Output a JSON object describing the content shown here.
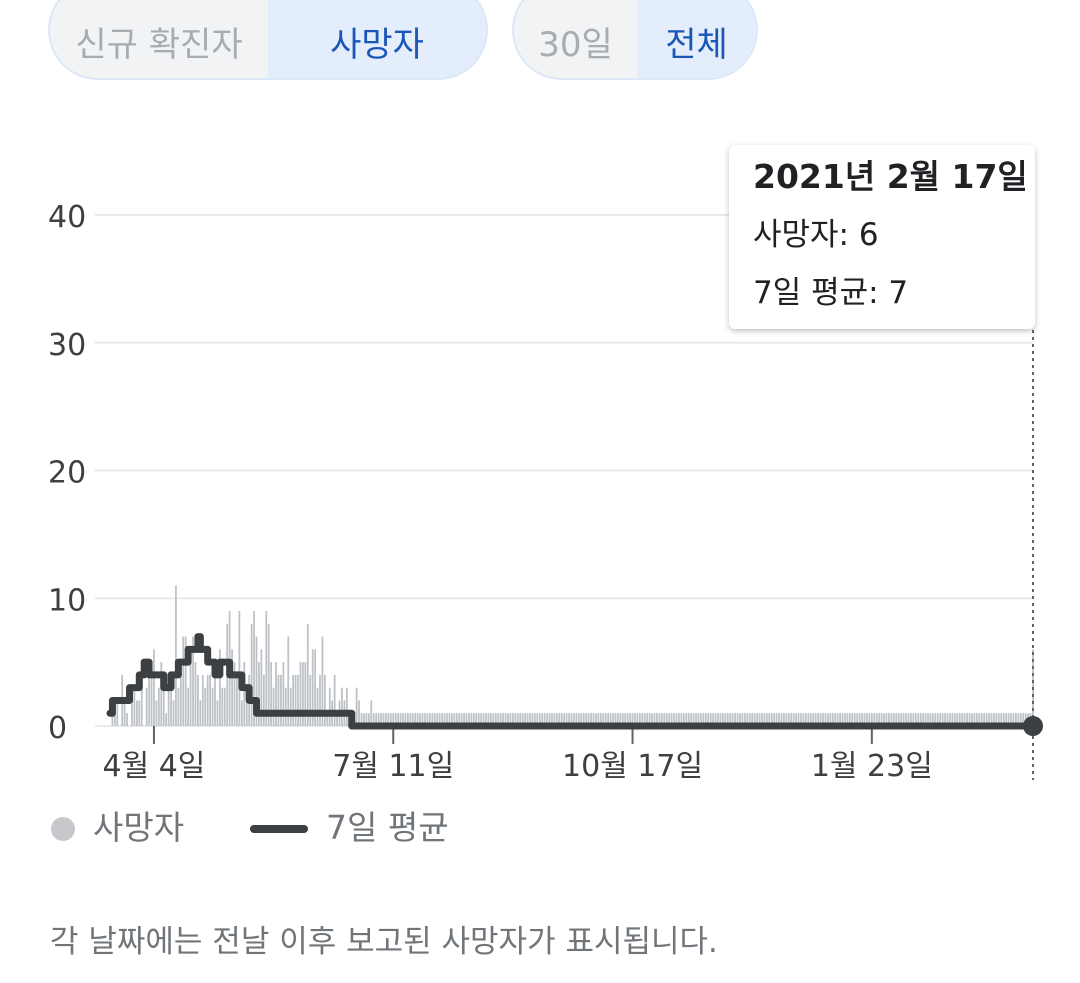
{
  "metric_tabs": [
    {
      "label": "신규 확진자",
      "active": false
    },
    {
      "label": "사망자",
      "active": true
    }
  ],
  "range_tabs": [
    {
      "label": "30일",
      "active": false
    },
    {
      "label": "전체",
      "active": true
    }
  ],
  "tooltip": {
    "date": "2021년 2월 17일",
    "deaths": "사망자: 6",
    "avg": "7일 평균: 7"
  },
  "legend": {
    "bars_label": "사망자",
    "line_label": "7일 평균"
  },
  "footnote": "각 날짜에는 전날 이후 보고된 사망자가 표시됩니다.",
  "colors": {
    "bars": "#bdc1c6",
    "line": "#3c4043",
    "grid": "#e8eaed",
    "active_tab_text": "#1a56b8",
    "active_tab_bg": "#e4edfb"
  },
  "chart_data": {
    "type": "bar",
    "series_types": [
      "bar",
      "line"
    ],
    "ylim": [
      0,
      40
    ],
    "yticks": [
      0,
      10,
      20,
      30,
      40
    ],
    "xtick_labels": [
      "4월 4일",
      "7월 11일",
      "10월 17일",
      "1월 23일"
    ],
    "xtick_index": [
      18,
      116,
      214,
      312
    ],
    "series": [
      {
        "name": "사망자",
        "values": [
          0,
          1,
          1,
          2,
          0,
          4,
          2,
          1,
          0,
          2,
          3,
          2,
          2,
          4,
          0,
          3,
          5,
          4,
          6,
          2,
          3,
          5,
          4,
          1,
          3,
          4,
          2,
          11,
          3,
          4,
          7,
          7,
          3,
          6,
          7,
          5,
          4,
          2,
          4,
          3,
          4,
          4,
          3,
          5,
          2,
          6,
          3,
          3,
          8,
          9,
          6,
          5,
          4,
          9,
          2,
          5,
          3,
          4,
          8,
          9,
          7,
          5,
          6,
          4,
          9,
          8,
          5,
          3,
          5,
          4,
          4,
          5,
          3,
          7,
          3,
          4,
          4,
          4,
          5,
          5,
          5,
          8,
          4,
          6,
          6,
          3,
          4,
          7,
          4,
          1,
          3,
          2,
          4,
          1,
          2,
          3,
          2,
          3,
          1,
          1,
          1,
          3,
          2,
          1,
          1,
          1,
          1,
          2,
          1,
          1,
          1,
          1,
          1,
          1,
          1,
          1,
          1,
          1,
          1,
          1,
          1,
          1,
          1,
          1,
          1,
          1,
          1,
          1,
          1,
          1,
          1,
          1,
          1,
          1,
          1,
          1,
          1,
          1,
          1,
          1,
          1,
          1,
          1,
          1,
          1,
          1,
          1,
          1,
          1,
          1,
          1,
          1,
          1,
          1,
          1,
          1,
          1,
          1,
          1,
          1,
          1,
          1,
          1,
          1,
          1,
          1,
          1,
          1,
          1,
          1,
          1,
          1,
          1,
          1,
          1,
          1,
          1,
          1,
          1,
          1,
          1,
          1,
          1,
          1,
          1,
          1,
          1,
          1,
          1,
          1,
          1,
          1,
          1,
          1,
          1,
          1,
          1,
          1,
          1,
          1,
          1,
          1,
          1,
          1,
          1,
          1,
          1,
          1,
          1,
          1,
          1,
          1,
          1,
          1,
          1,
          1,
          1,
          1,
          1,
          1,
          1,
          1,
          1,
          1,
          1,
          1,
          1,
          1,
          1,
          1,
          1,
          1,
          1,
          1,
          1,
          1,
          1,
          1,
          1,
          1,
          1,
          1,
          1,
          1,
          1,
          1,
          1,
          1,
          1,
          1,
          1,
          1,
          1,
          1,
          1,
          1,
          1,
          1,
          1,
          1,
          1,
          1,
          1,
          1,
          1,
          1,
          1,
          1,
          1,
          1,
          1,
          1,
          1,
          1,
          1,
          1,
          1,
          1,
          1,
          1,
          1,
          1,
          1,
          1,
          1,
          1,
          1,
          1,
          1,
          1,
          1,
          1,
          1,
          1,
          1,
          1,
          1,
          1,
          1,
          1,
          1,
          1,
          1,
          1,
          1,
          1,
          1,
          1,
          1,
          1,
          1,
          1,
          1,
          1,
          1,
          1,
          1,
          1,
          1,
          1,
          1,
          1,
          1,
          1,
          1,
          1,
          1,
          1,
          1,
          1,
          1,
          1,
          1,
          1,
          1,
          1,
          1,
          1,
          1,
          1,
          1,
          1,
          1,
          1,
          1,
          1,
          1,
          1,
          1,
          1,
          1,
          1,
          1,
          1,
          1,
          1,
          1,
          1,
          1,
          1,
          1,
          1,
          1,
          1,
          1,
          1,
          1,
          1,
          1,
          1,
          1,
          1,
          1,
          1,
          1,
          1,
          1,
          1,
          6
        ]
      },
      {
        "name": "7일 평균",
        "values": [
          1,
          2,
          2,
          2,
          2,
          2,
          2,
          2,
          3,
          3,
          3,
          3,
          4,
          4,
          5,
          5,
          4,
          4,
          4,
          4,
          4,
          4,
          3,
          3,
          3,
          4,
          4,
          4,
          5,
          5,
          5,
          5,
          6,
          6,
          6,
          6,
          7,
          6,
          6,
          6,
          5,
          5,
          5,
          4,
          4,
          5,
          5,
          5,
          5,
          4,
          4,
          4,
          4,
          4,
          3,
          3,
          3,
          2,
          2,
          2,
          1,
          1,
          1,
          1,
          1,
          1,
          1,
          1,
          1,
          1,
          1,
          1,
          1,
          1,
          1,
          1,
          1,
          1,
          1,
          1,
          1,
          1,
          1,
          1,
          1,
          1,
          1,
          1,
          1,
          1,
          1,
          1,
          1,
          1,
          1,
          1,
          1,
          1,
          1,
          0,
          0,
          0,
          0,
          0,
          0,
          0,
          0,
          0,
          0,
          0,
          0,
          0,
          0,
          0,
          0,
          0,
          0,
          0,
          0,
          0,
          0,
          0,
          0,
          0,
          0,
          0,
          0,
          0,
          0,
          0,
          0,
          0,
          0,
          0,
          0,
          0,
          0,
          0,
          0,
          0,
          0,
          0,
          0,
          0,
          0,
          0,
          0,
          0,
          0,
          0,
          0,
          0,
          0,
          0,
          0,
          0,
          0,
          0,
          0,
          0,
          0,
          0,
          0,
          0,
          0,
          0,
          0,
          0,
          0,
          0,
          0,
          0,
          0,
          0,
          0,
          0,
          0,
          0,
          0,
          0,
          0,
          0,
          0,
          0,
          0,
          0,
          0,
          0,
          0,
          0,
          0,
          0,
          0,
          0,
          0,
          0,
          0,
          0,
          0,
          0,
          0,
          0,
          0,
          0,
          0,
          0,
          0,
          0,
          0,
          0,
          0,
          0,
          0,
          0,
          0,
          0,
          0,
          0,
          0,
          0,
          0,
          0,
          0,
          0,
          0,
          0,
          0,
          0,
          0,
          0,
          0,
          0,
          0,
          0,
          0,
          0,
          0,
          0,
          0,
          0,
          0,
          0,
          0,
          0,
          0,
          0,
          0,
          0,
          0,
          0,
          0,
          0,
          0,
          0,
          0,
          0,
          0,
          0,
          0,
          0,
          0,
          0,
          0,
          0,
          0,
          0,
          0,
          0,
          0,
          0,
          0,
          0,
          0,
          0,
          0,
          0,
          0,
          0,
          0,
          0,
          0,
          0,
          0,
          0,
          0,
          0,
          0,
          0,
          0,
          0,
          0,
          0,
          0,
          0,
          0,
          0,
          0,
          0,
          0,
          0,
          0,
          0,
          0,
          0,
          0,
          0,
          0,
          0,
          0,
          0,
          0,
          0,
          0,
          0,
          0,
          0,
          0,
          0,
          0,
          0,
          0,
          0,
          0,
          0,
          0,
          0,
          0,
          0,
          0,
          0,
          0,
          0,
          0,
          0,
          0,
          0,
          0,
          0,
          0,
          0,
          0,
          0,
          0,
          0,
          0,
          0,
          0,
          0,
          0,
          0,
          0,
          0,
          0,
          0,
          0,
          0,
          0,
          0,
          0,
          0,
          0,
          0,
          0,
          0,
          0,
          0,
          0,
          0,
          0,
          0,
          0,
          0,
          0,
          0,
          0,
          0,
          0,
          0,
          0,
          0,
          0,
          0,
          0,
          0,
          0,
          0,
          0,
          0,
          0,
          0,
          0,
          0,
          0,
          0,
          0,
          0,
          0,
          0,
          0,
          7
        ]
      }
    ]
  }
}
